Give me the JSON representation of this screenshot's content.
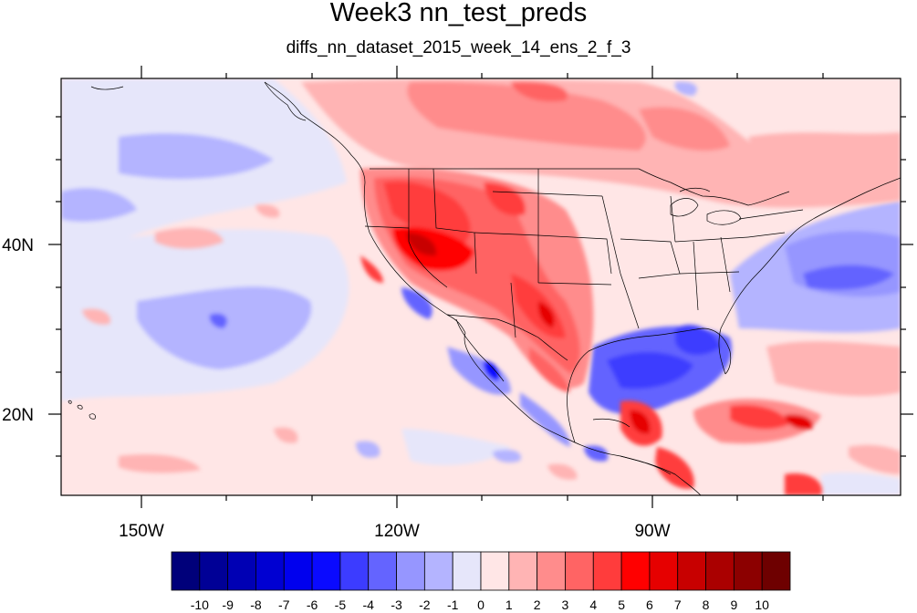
{
  "title": "Week3 nn_test_preds",
  "subtitle": "diffs_nn_dataset_2015_week_14_ens_2_f_3",
  "axes": {
    "x_ticks": [
      "150W",
      "120W",
      "90W"
    ],
    "y_ticks": [
      "40N",
      "20N"
    ]
  },
  "colorbar": {
    "labels": [
      "-10",
      "-9",
      "-8",
      "-7",
      "-6",
      "-5",
      "-4",
      "-3",
      "-2",
      "-1",
      "0",
      "1",
      "2",
      "3",
      "4",
      "5",
      "6",
      "7",
      "8",
      "9",
      "10"
    ],
    "colors": [
      "#00007a",
      "#000096",
      "#0000b4",
      "#0000d2",
      "#0000ee",
      "#0a0aff",
      "#3c3cff",
      "#6464ff",
      "#9696ff",
      "#b4b4ff",
      "#e6e6fa",
      "#ffe6e6",
      "#ffb4b4",
      "#ff8c8c",
      "#ff6464",
      "#ff3c3c",
      "#ff0000",
      "#e60000",
      "#c80000",
      "#aa0000",
      "#8c0000",
      "#6e0000"
    ]
  },
  "colors": {
    "ocean_light_blue": "#e6e6fa",
    "light_pink": "#ffe6e6",
    "pink": "#ffb4b4",
    "red": "#ff3c3c",
    "blue": "#6464ff"
  }
}
